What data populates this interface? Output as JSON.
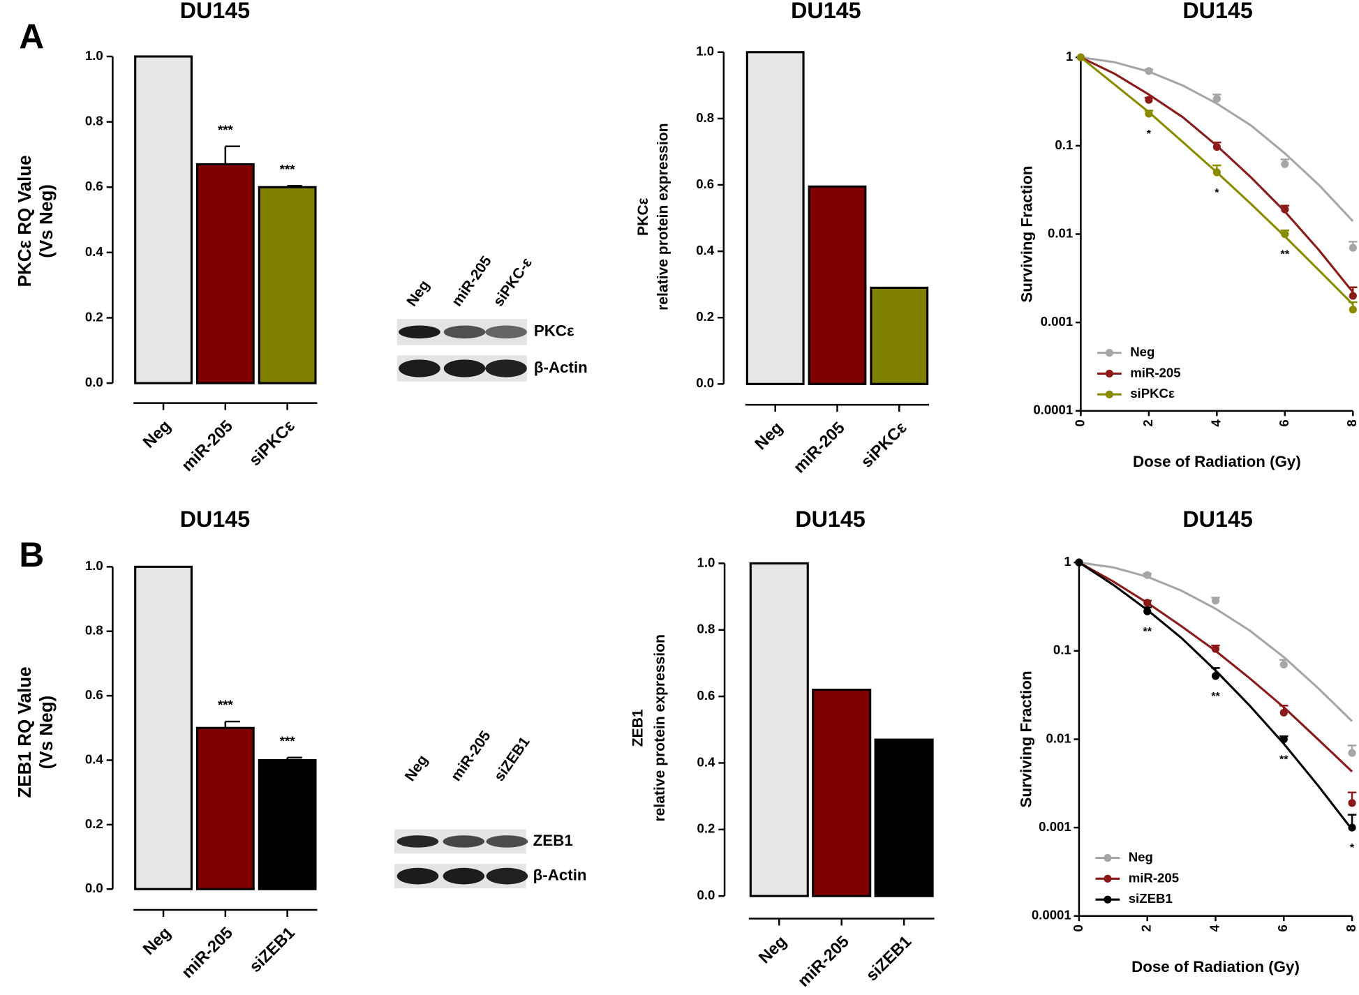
{
  "panels": [
    {
      "label": "A"
    },
    {
      "label": "B"
    }
  ],
  "blots": [
    {
      "lanes": [
        "Neg",
        "miR-205",
        "siPKC-ε"
      ],
      "bands": [
        "PKCε",
        "β-Actin"
      ]
    },
    {
      "lanes": [
        "Neg",
        "miR-205",
        "siZEB1"
      ],
      "bands": [
        "ZEB1",
        "β-Actin"
      ]
    }
  ],
  "chart_data": [
    {
      "type": "bar",
      "title": "DU145",
      "y_label": [
        "PKCε RQ Value",
        "(Vs Neg)"
      ],
      "categories": [
        "Neg",
        "miR-205",
        "siPKCε"
      ],
      "values": [
        1.0,
        0.67,
        0.6
      ],
      "errors": [
        null,
        0.055,
        0.004
      ],
      "value_annotations": [
        null,
        "***",
        "***"
      ],
      "colors": [
        "#e6e6e6",
        "#800000",
        "#808000"
      ],
      "ylim": [
        0,
        1
      ],
      "yticks": [
        {
          "value": 0,
          "label": "0.0"
        },
        0.2,
        0.4,
        0.6,
        0.8,
        {
          "value": 1,
          "label": "1.0"
        }
      ]
    },
    {
      "type": "bar",
      "title": "DU145",
      "y_label": [
        "PKCε",
        "relative protein expression"
      ],
      "categories": [
        "Neg",
        "miR-205",
        "siPKCε"
      ],
      "values": [
        1.0,
        0.595,
        0.29
      ],
      "colors": [
        "#e6e6e6",
        "#800000",
        "#808000"
      ],
      "ylim": [
        0,
        1
      ],
      "yticks": [
        {
          "value": 0,
          "label": "0.0"
        },
        0.2,
        0.4,
        0.6,
        0.8,
        {
          "value": 1,
          "label": "1.0"
        }
      ]
    },
    {
      "type": "line",
      "title": "DU145",
      "x_label": "Dose of Radiation (Gy)",
      "y_label": "Surviving Fraction",
      "log_y": true,
      "legend": "lower left",
      "x": [
        0,
        2,
        4,
        6,
        8
      ],
      "fit_x": [
        0,
        1,
        2,
        3,
        4,
        5,
        6,
        7,
        8
      ],
      "xlim": [
        0,
        8
      ],
      "xticks": [
        0,
        2,
        4,
        6,
        8
      ],
      "ylim": [
        0.0001,
        1
      ],
      "yticks": [
        0.0001,
        0.001,
        0.01,
        0.1,
        1
      ],
      "series": [
        {
          "name": "Neg",
          "color": "#a6a6a6",
          "values": [
            1,
            0.7,
            0.34,
            0.062,
            0.007
          ],
          "errors": [
            null,
            0.03,
            0.04,
            0.008,
            0.0012
          ],
          "fit": [
            1,
            0.88,
            0.69,
            0.48,
            0.3,
            0.17,
            0.082,
            0.036,
            0.014
          ]
        },
        {
          "name": "miR-205",
          "color": "#8b1a1a",
          "values": [
            1,
            0.33,
            0.097,
            0.019,
            0.002
          ],
          "errors": [
            null,
            0.02,
            0.012,
            0.002,
            0.0005
          ],
          "fit": [
            1,
            0.65,
            0.38,
            0.21,
            0.1,
            0.044,
            0.018,
            0.0066,
            0.0022
          ]
        },
        {
          "name": "siPKCε",
          "color": "#8b8b00",
          "values": [
            1,
            0.23,
            0.05,
            0.01,
            0.0014
          ],
          "errors": [
            null,
            0.02,
            0.01,
            0.001,
            0.0003
          ],
          "fit": [
            1,
            0.49,
            0.24,
            0.11,
            0.05,
            0.022,
            0.0094,
            0.0039,
            0.0016
          ],
          "point_annotations": [
            null,
            "*",
            "*",
            "**",
            null
          ]
        }
      ]
    },
    {
      "type": "bar",
      "title": "DU145",
      "y_label": [
        "ZEB1 RQ Value",
        "(Vs Neg)"
      ],
      "categories": [
        "Neg",
        "miR-205",
        "siZEB1"
      ],
      "values": [
        1.0,
        0.5,
        0.4
      ],
      "errors": [
        null,
        0.02,
        0.008
      ],
      "value_annotations": [
        null,
        "***",
        "***"
      ],
      "colors": [
        "#e6e6e6",
        "#800000",
        "#000000"
      ],
      "ylim": [
        0,
        1
      ],
      "yticks": [
        {
          "value": 0,
          "label": "0.0"
        },
        0.2,
        0.4,
        0.6,
        0.8,
        {
          "value": 1,
          "label": "1.0"
        }
      ]
    },
    {
      "type": "bar",
      "title": "DU145",
      "y_label": [
        "ZEB1",
        "relative protein expression"
      ],
      "categories": [
        "Neg",
        "miR-205",
        "siZEB1"
      ],
      "values": [
        1.0,
        0.62,
        0.47
      ],
      "colors": [
        "#e6e6e6",
        "#800000",
        "#000000"
      ],
      "ylim": [
        0,
        1
      ],
      "yticks": [
        {
          "value": 0,
          "label": "0.0"
        },
        0.2,
        0.4,
        0.6,
        0.8,
        {
          "value": 1,
          "label": "1.0"
        }
      ]
    },
    {
      "type": "line",
      "title": "DU145",
      "x_label": "Dose of Radiation (Gy)",
      "y_label": "Surviving Fraction",
      "log_y": true,
      "legend": "lower left",
      "x": [
        0,
        2,
        4,
        6,
        8
      ],
      "fit_x": [
        0,
        1,
        2,
        3,
        4,
        5,
        6,
        7,
        8
      ],
      "xlim": [
        0,
        8
      ],
      "xticks": [
        0,
        2,
        4,
        6,
        8
      ],
      "ylim": [
        0.0001,
        1
      ],
      "yticks": [
        0.0001,
        0.001,
        0.01,
        0.1,
        1
      ],
      "series": [
        {
          "name": "Neg",
          "color": "#a6a6a6",
          "values": [
            1,
            0.72,
            0.37,
            0.07,
            0.007
          ],
          "errors": [
            null,
            0.03,
            0.03,
            0.009,
            0.0015
          ],
          "fit": [
            1,
            0.88,
            0.69,
            0.48,
            0.3,
            0.17,
            0.085,
            0.038,
            0.016
          ]
        },
        {
          "name": "miR-205",
          "color": "#8b1a1a",
          "values": [
            1,
            0.35,
            0.105,
            0.02,
            0.0019
          ],
          "errors": [
            null,
            0.02,
            0.01,
            0.004,
            0.0006
          ],
          "fit": [
            1,
            0.61,
            0.35,
            0.19,
            0.1,
            0.049,
            0.023,
            0.01,
            0.0043
          ]
        },
        {
          "name": "siZEB1",
          "color": "#000000",
          "values": [
            1,
            0.28,
            0.052,
            0.01,
            0.001
          ],
          "errors": [
            null,
            0.03,
            0.012,
            0.0008,
            0.0004
          ],
          "fit": [
            1,
            0.56,
            0.29,
            0.14,
            0.06,
            0.024,
            0.0089,
            0.003,
            0.00095
          ],
          "point_annotations": [
            null,
            "**",
            "**",
            "**",
            "*"
          ]
        }
      ]
    }
  ]
}
